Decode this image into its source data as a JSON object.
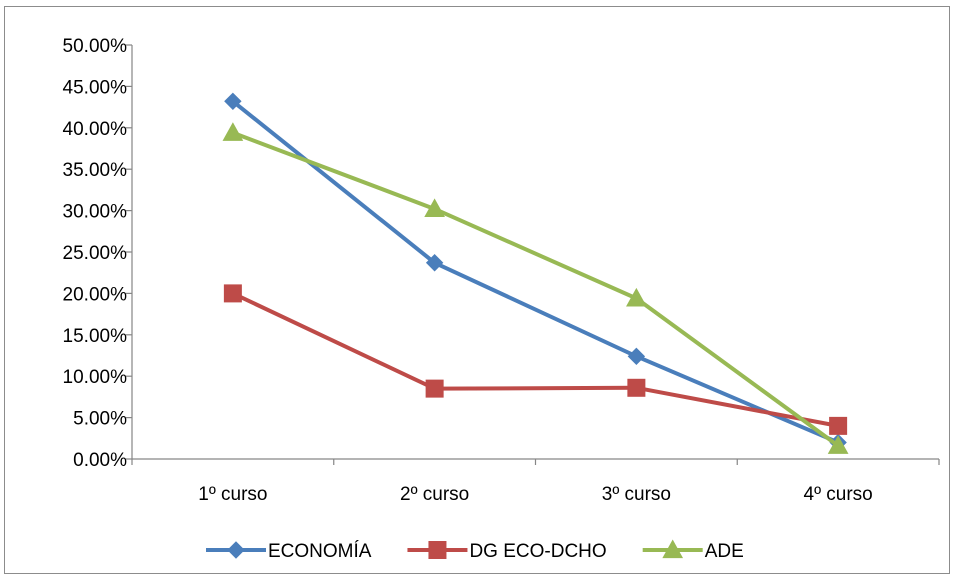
{
  "chart_data": {
    "type": "line",
    "title": "",
    "xlabel": "",
    "ylabel": "",
    "categories": [
      "1º curso",
      "2º curso",
      "3º curso",
      "4º curso"
    ],
    "ylim": [
      0,
      0.5
    ],
    "ytick_step": 0.05,
    "ytick_labels": [
      "0.00%",
      "5.00%",
      "10.00%",
      "15.00%",
      "20.00%",
      "25.00%",
      "30.00%",
      "35.00%",
      "40.00%",
      "45.00%",
      "50.00%"
    ],
    "grid": false,
    "legend_position": "bottom",
    "series": [
      {
        "name": "ECONOMÍA",
        "color": "#4a7ebb",
        "marker": "diamond",
        "values": [
          0.432,
          0.237,
          0.124,
          0.02
        ]
      },
      {
        "name": "DG ECO-DCHO",
        "color": "#be4b48",
        "marker": "square",
        "values": [
          0.2,
          0.085,
          0.086,
          0.04
        ]
      },
      {
        "name": "ADE",
        "color": "#98b954",
        "marker": "triangle",
        "values": [
          0.394,
          0.302,
          0.194,
          0.016
        ]
      }
    ]
  }
}
